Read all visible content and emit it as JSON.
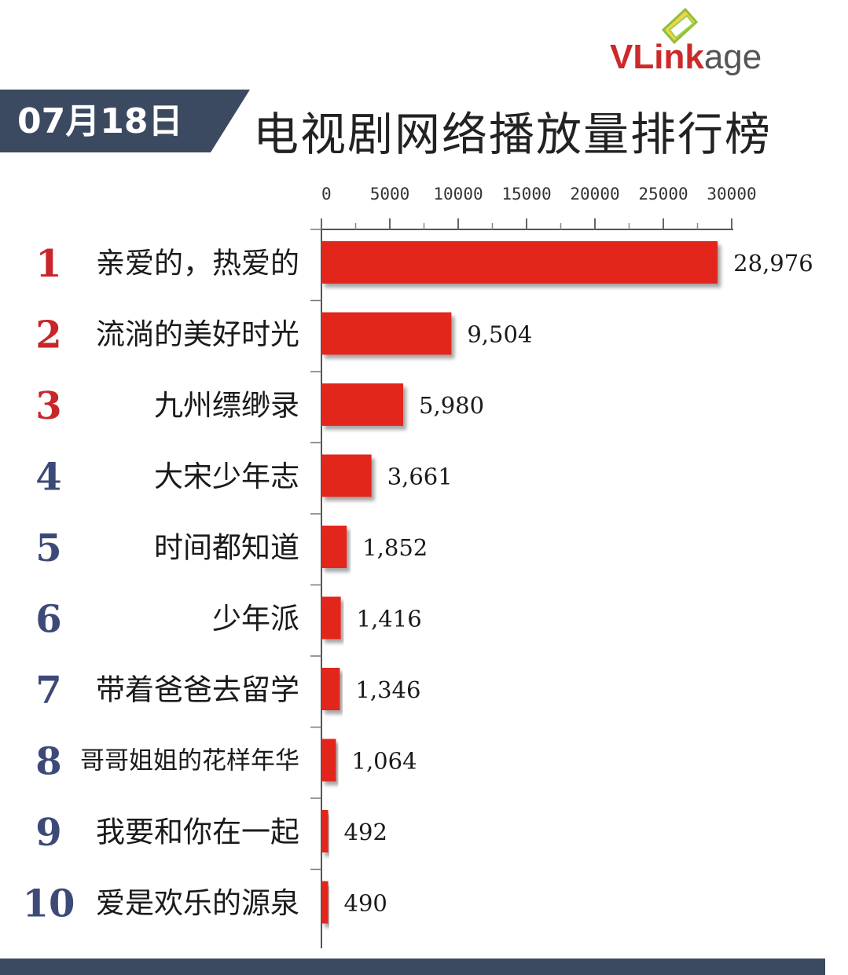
{
  "logo": {
    "text_v": "VL",
    "text_ink": "ink",
    "text_age": "age"
  },
  "header": {
    "date": "07月18日",
    "title": "电视剧网络播放量排行榜"
  },
  "colors": {
    "bar": "#e3281f",
    "banner": "#3b4a60",
    "rank_top": "#c8262a",
    "rank_other": "#3d4a78"
  },
  "chart_data": {
    "type": "bar",
    "orientation": "horizontal",
    "categories": [
      "亲爱的，热爱的",
      "流淌的美好时光",
      "九州缥缈录",
      "大宋少年志",
      "时间都知道",
      "少年派",
      "带着爸爸去留学",
      "哥哥姐姐的花样年华",
      "我要和你在一起",
      "爱是欢乐的源泉"
    ],
    "ranks": [
      "1",
      "2",
      "3",
      "4",
      "5",
      "6",
      "7",
      "8",
      "9",
      "10"
    ],
    "values": [
      28976,
      9504,
      5980,
      3661,
      1852,
      1416,
      1346,
      1064,
      492,
      490
    ],
    "value_labels": [
      "28,976",
      "9,504",
      "5,980",
      "3,661",
      "1,852",
      "1,416",
      "1,346",
      "1,064",
      "492",
      "490"
    ],
    "ticks": [
      "0",
      "5000",
      "10000",
      "15000",
      "20000",
      "25000",
      "30000"
    ],
    "xlim": [
      0,
      30000
    ],
    "axis_position": "top"
  }
}
